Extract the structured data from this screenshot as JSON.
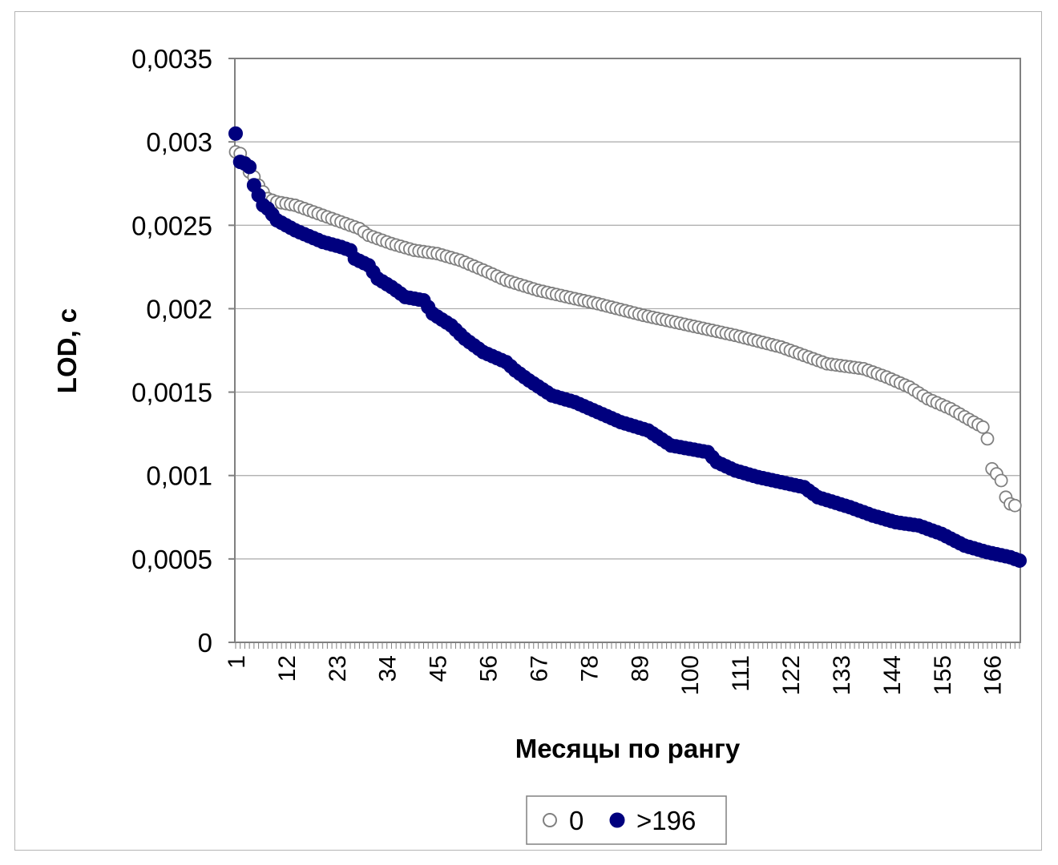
{
  "chart_data": {
    "type": "scatter",
    "title": "",
    "xlabel": "Месяцы по рангу",
    "ylabel": "LOD, c",
    "xlim": [
      1,
      172
    ],
    "ylim": [
      0,
      0.0035
    ],
    "y_ticks": [
      "0",
      "0,0005",
      "0,001",
      "0,0015",
      "0,002",
      "0,0025",
      "0,003",
      "0,0035"
    ],
    "x_ticks": [
      "1",
      "12",
      "23",
      "34",
      "45",
      "56",
      "67",
      "78",
      "89",
      "100",
      "111",
      "122",
      "133",
      "144",
      "155",
      "166"
    ],
    "grid": "horizontal",
    "legend_position": "bottom",
    "series": [
      {
        "name": "0",
        "color": "#808080",
        "marker": "hollow-circle",
        "anchors": [
          [
            1,
            0.00294
          ],
          [
            2,
            0.00293
          ],
          [
            4,
            0.00282
          ],
          [
            5,
            0.00279
          ],
          [
            6,
            0.00274
          ],
          [
            8,
            0.00266
          ],
          [
            10,
            0.00264
          ],
          [
            14,
            0.00262
          ],
          [
            20,
            0.00256
          ],
          [
            25,
            0.00251
          ],
          [
            28,
            0.00248
          ],
          [
            30,
            0.00244
          ],
          [
            35,
            0.00239
          ],
          [
            40,
            0.00235
          ],
          [
            45,
            0.00233
          ],
          [
            50,
            0.00229
          ],
          [
            56,
            0.00222
          ],
          [
            60,
            0.00217
          ],
          [
            67,
            0.00211
          ],
          [
            75,
            0.00206
          ],
          [
            80,
            0.00203
          ],
          [
            90,
            0.00196
          ],
          [
            100,
            0.0019
          ],
          [
            110,
            0.00184
          ],
          [
            120,
            0.00177
          ],
          [
            130,
            0.00167
          ],
          [
            138,
            0.00164
          ],
          [
            143,
            0.00159
          ],
          [
            148,
            0.00153
          ],
          [
            152,
            0.00146
          ],
          [
            157,
            0.0014
          ],
          [
            162,
            0.00132
          ],
          [
            164,
            0.00129
          ],
          [
            165,
            0.00122
          ],
          [
            166,
            0.00104
          ],
          [
            167,
            0.00101
          ],
          [
            168,
            0.00097
          ],
          [
            169,
            0.00087
          ],
          [
            170,
            0.00083
          ],
          [
            171,
            0.00082
          ]
        ]
      },
      {
        "name": ">196",
        "color": "#00007e",
        "marker": "filled-circle",
        "anchors": [
          [
            1,
            0.00305
          ],
          [
            2,
            0.00288
          ],
          [
            3,
            0.00287
          ],
          [
            4,
            0.00285
          ],
          [
            5,
            0.00274
          ],
          [
            6,
            0.00268
          ],
          [
            7,
            0.00262
          ],
          [
            8,
            0.0026
          ],
          [
            10,
            0.00253
          ],
          [
            14,
            0.00247
          ],
          [
            20,
            0.0024
          ],
          [
            24,
            0.00237
          ],
          [
            26,
            0.00235
          ],
          [
            27,
            0.0023
          ],
          [
            30,
            0.00226
          ],
          [
            32,
            0.00218
          ],
          [
            35,
            0.00213
          ],
          [
            38,
            0.00207
          ],
          [
            42,
            0.00205
          ],
          [
            44,
            0.00197
          ],
          [
            48,
            0.0019
          ],
          [
            51,
            0.00182
          ],
          [
            55,
            0.00174
          ],
          [
            60,
            0.00168
          ],
          [
            62,
            0.00163
          ],
          [
            65,
            0.00157
          ],
          [
            70,
            0.00148
          ],
          [
            75,
            0.00144
          ],
          [
            80,
            0.00138
          ],
          [
            85,
            0.00132
          ],
          [
            91,
            0.00127
          ],
          [
            96,
            0.00118
          ],
          [
            100,
            0.00116
          ],
          [
            104,
            0.00114
          ],
          [
            106,
            0.00108
          ],
          [
            110,
            0.00103
          ],
          [
            115,
            0.00099
          ],
          [
            120,
            0.00096
          ],
          [
            125,
            0.00093
          ],
          [
            128,
            0.00087
          ],
          [
            135,
            0.00081
          ],
          [
            140,
            0.00076
          ],
          [
            145,
            0.00072
          ],
          [
            150,
            0.0007
          ],
          [
            155,
            0.00065
          ],
          [
            160,
            0.00058
          ],
          [
            165,
            0.00054
          ],
          [
            170,
            0.00051
          ],
          [
            172,
            0.00049
          ]
        ]
      }
    ]
  }
}
